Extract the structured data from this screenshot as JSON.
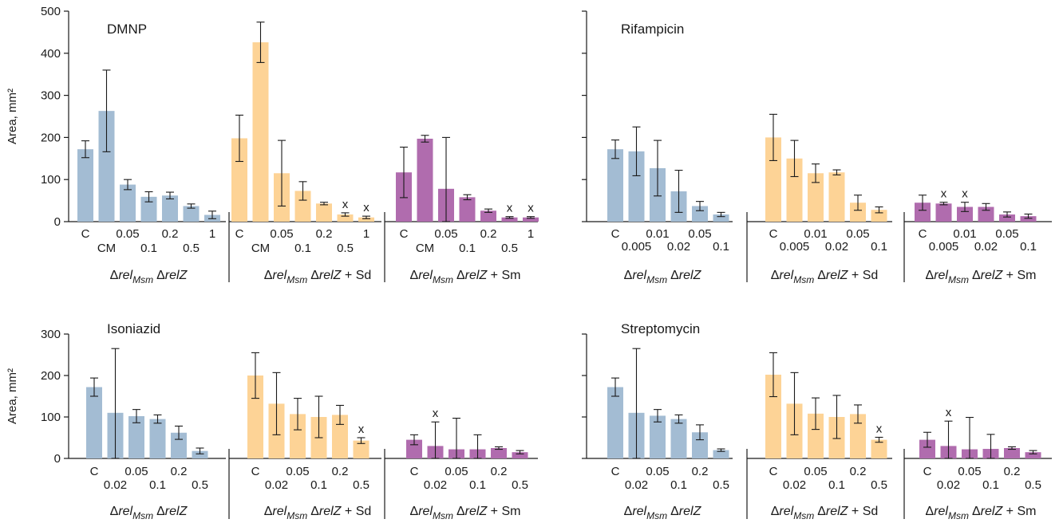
{
  "colors": {
    "group_1": "#a3bcd3",
    "group_2": "#fdd396",
    "group_3": "#b06cae",
    "axis": "#1a1a1a"
  },
  "chart_data": [
    {
      "type": "bar",
      "title": "DMNP",
      "ylabel": "Area, mm²",
      "ylim": [
        0,
        500
      ],
      "yticks": [
        0,
        100,
        200,
        300,
        400,
        500
      ],
      "categories": [
        "C",
        "CM",
        "0.05",
        "0.1",
        "0.2",
        "0.5",
        "1"
      ],
      "groups": [
        {
          "label": "ΔrelMsm ΔrelZ",
          "values": [
            172,
            263,
            88,
            59,
            62,
            37,
            16
          ],
          "err": [
            20,
            97,
            12,
            12,
            8,
            5,
            9
          ],
          "marked": []
        },
        {
          "label": "ΔrelMsm ΔrelZ + Sd",
          "values": [
            198,
            426,
            115,
            73,
            43,
            17,
            10
          ],
          "err": [
            55,
            48,
            78,
            22,
            3,
            4,
            3
          ],
          "marked": [
            5,
            6
          ]
        },
        {
          "label": "ΔrelMsm ΔrelZ + Sm",
          "values": [
            117,
            197,
            78,
            58,
            26,
            10,
            10
          ],
          "err": [
            60,
            8,
            122,
            6,
            4,
            2,
            2
          ],
          "marked": [
            5,
            6
          ]
        }
      ]
    },
    {
      "type": "bar",
      "title": "Rifampicin",
      "ylabel": "",
      "ylim": [
        0,
        500
      ],
      "yticks": [
        0,
        100,
        200,
        300,
        400,
        500
      ],
      "categories": [
        "C",
        "0.005",
        "0.01",
        "0.02",
        "0.05",
        "0.1"
      ],
      "groups": [
        {
          "label": "ΔrelMsm ΔrelZ",
          "values": [
            172,
            167,
            127,
            72,
            37,
            17
          ],
          "err": [
            22,
            58,
            66,
            50,
            11,
            5
          ],
          "marked": []
        },
        {
          "label": "ΔrelMsm ΔrelZ + Sd",
          "values": [
            200,
            150,
            115,
            117,
            45,
            28
          ],
          "err": [
            55,
            43,
            22,
            6,
            18,
            7
          ],
          "marked": []
        },
        {
          "label": "ΔrelMsm ΔrelZ + Sm",
          "values": [
            45,
            43,
            35,
            35,
            17,
            13
          ],
          "err": [
            18,
            3,
            11,
            8,
            6,
            5
          ],
          "marked": [
            1,
            2
          ]
        }
      ]
    },
    {
      "type": "bar",
      "title": "Isoniazid",
      "ylabel": "Area, mm²",
      "ylim": [
        0,
        300
      ],
      "yticks": [
        0,
        100,
        200,
        300
      ],
      "categories": [
        "C",
        "0.02",
        "0.05",
        "0.1",
        "0.2",
        "0.5"
      ],
      "groups": [
        {
          "label": "ΔrelMsm ΔrelZ",
          "values": [
            172,
            110,
            102,
            95,
            62,
            18
          ],
          "err": [
            22,
            155,
            16,
            10,
            16,
            7
          ],
          "marked": []
        },
        {
          "label": "ΔrelMsm ΔrelZ + Sd",
          "values": [
            200,
            132,
            107,
            100,
            105,
            43
          ],
          "err": [
            55,
            75,
            38,
            50,
            23,
            7
          ],
          "marked": [
            5
          ]
        },
        {
          "label": "ΔrelMsm ΔrelZ + Sm",
          "values": [
            45,
            30,
            22,
            22,
            25,
            15
          ],
          "err": [
            12,
            58,
            75,
            35,
            3,
            4
          ],
          "marked": [
            1
          ]
        }
      ]
    },
    {
      "type": "bar",
      "title": "Streptomycin",
      "ylabel": "",
      "ylim": [
        0,
        300
      ],
      "yticks": [
        0,
        100,
        200,
        300
      ],
      "categories": [
        "C",
        "0.02",
        "0.05",
        "0.1",
        "0.2",
        "0.5"
      ],
      "groups": [
        {
          "label": "ΔrelMsm ΔrelZ",
          "values": [
            172,
            110,
            103,
            95,
            63,
            20
          ],
          "err": [
            22,
            155,
            15,
            10,
            18,
            3
          ],
          "marked": []
        },
        {
          "label": "ΔrelMsm ΔrelZ + Sd",
          "values": [
            202,
            132,
            108,
            100,
            107,
            45
          ],
          "err": [
            53,
            75,
            38,
            52,
            22,
            6
          ],
          "marked": [
            5
          ]
        },
        {
          "label": "ΔrelMsm ΔrelZ + Sm",
          "values": [
            45,
            30,
            22,
            23,
            25,
            15
          ],
          "err": [
            18,
            60,
            77,
            35,
            3,
            4
          ],
          "marked": [
            1
          ]
        }
      ]
    }
  ],
  "marker_text": "x",
  "group_label_parts": {
    "delta": "Δ",
    "rel": "rel",
    "msm": "Msm",
    "relz": "relZ",
    "sd": " + Sd",
    "sm": " + Sm"
  }
}
